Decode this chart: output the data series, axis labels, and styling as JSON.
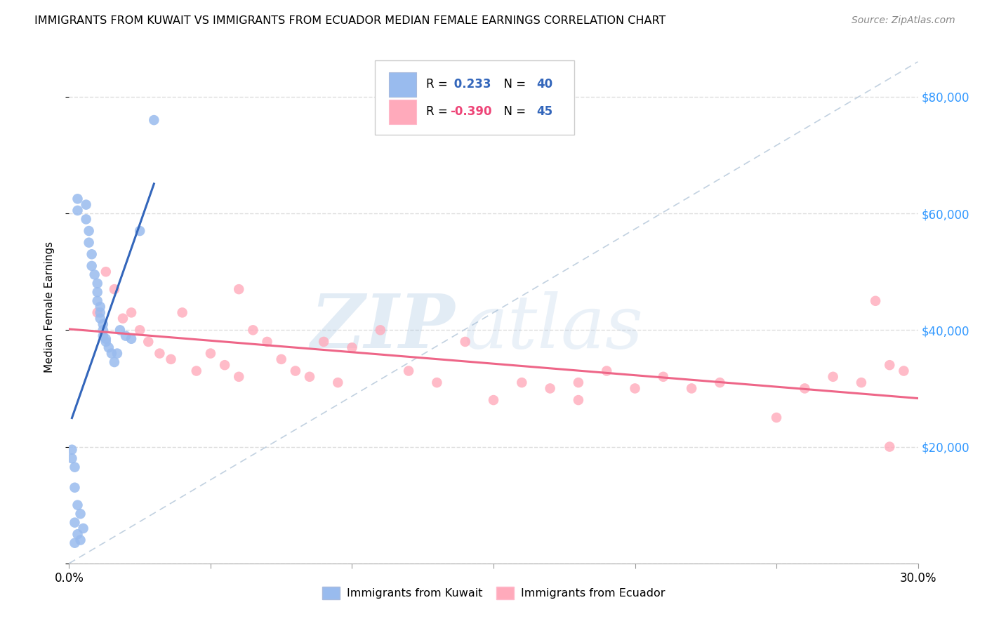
{
  "title": "IMMIGRANTS FROM KUWAIT VS IMMIGRANTS FROM ECUADOR MEDIAN FEMALE EARNINGS CORRELATION CHART",
  "source": "Source: ZipAtlas.com",
  "ylabel": "Median Female Earnings",
  "xlim": [
    0.0,
    0.3
  ],
  "ylim": [
    0,
    88000
  ],
  "ytick_vals": [
    0,
    20000,
    40000,
    60000,
    80000
  ],
  "ytick_labels_right": [
    "",
    "$20,000",
    "$40,000",
    "$60,000",
    "$80,000"
  ],
  "blue_color": "#99BBEE",
  "pink_color": "#FFAABB",
  "blue_line_color": "#3366BB",
  "pink_line_color": "#EE6688",
  "diag_color": "#BBCCDD",
  "grid_color": "#DDDDDD",
  "legend_blue_text": "#3366BB",
  "legend_pink_text": "#EE4477",
  "legend_n_color": "#3366BB",
  "kuwait_x": [
    0.001,
    0.002,
    0.002,
    0.003,
    0.003,
    0.004,
    0.005,
    0.006,
    0.006,
    0.007,
    0.007,
    0.008,
    0.008,
    0.009,
    0.01,
    0.01,
    0.01,
    0.011,
    0.011,
    0.011,
    0.012,
    0.012,
    0.012,
    0.013,
    0.013,
    0.014,
    0.015,
    0.016,
    0.017,
    0.018,
    0.02,
    0.022,
    0.003,
    0.003,
    0.004,
    0.001,
    0.002,
    0.002,
    0.025,
    0.03
  ],
  "kuwait_y": [
    19500,
    16500,
    13000,
    10000,
    60500,
    8500,
    6000,
    61500,
    59000,
    57000,
    55000,
    53000,
    51000,
    49500,
    48000,
    46500,
    45000,
    44000,
    43000,
    42000,
    41000,
    40000,
    39000,
    38500,
    38000,
    37000,
    36000,
    34500,
    36000,
    40000,
    39000,
    38500,
    5000,
    62500,
    4000,
    18000,
    7000,
    3500,
    57000,
    76000
  ],
  "ecuador_x": [
    0.01,
    0.013,
    0.016,
    0.019,
    0.022,
    0.025,
    0.028,
    0.032,
    0.036,
    0.04,
    0.045,
    0.05,
    0.055,
    0.06,
    0.065,
    0.07,
    0.075,
    0.08,
    0.085,
    0.09,
    0.095,
    0.1,
    0.11,
    0.12,
    0.13,
    0.14,
    0.15,
    0.16,
    0.17,
    0.18,
    0.19,
    0.2,
    0.21,
    0.22,
    0.23,
    0.25,
    0.26,
    0.27,
    0.28,
    0.285,
    0.29,
    0.18,
    0.29,
    0.295,
    0.06
  ],
  "ecuador_y": [
    43000,
    50000,
    47000,
    42000,
    43000,
    40000,
    38000,
    36000,
    35000,
    43000,
    33000,
    36000,
    34000,
    47000,
    40000,
    38000,
    35000,
    33000,
    32000,
    38000,
    31000,
    37000,
    40000,
    33000,
    31000,
    38000,
    28000,
    31000,
    30000,
    31000,
    33000,
    30000,
    32000,
    30000,
    31000,
    25000,
    30000,
    32000,
    31000,
    45000,
    34000,
    28000,
    20000,
    33000,
    32000
  ]
}
